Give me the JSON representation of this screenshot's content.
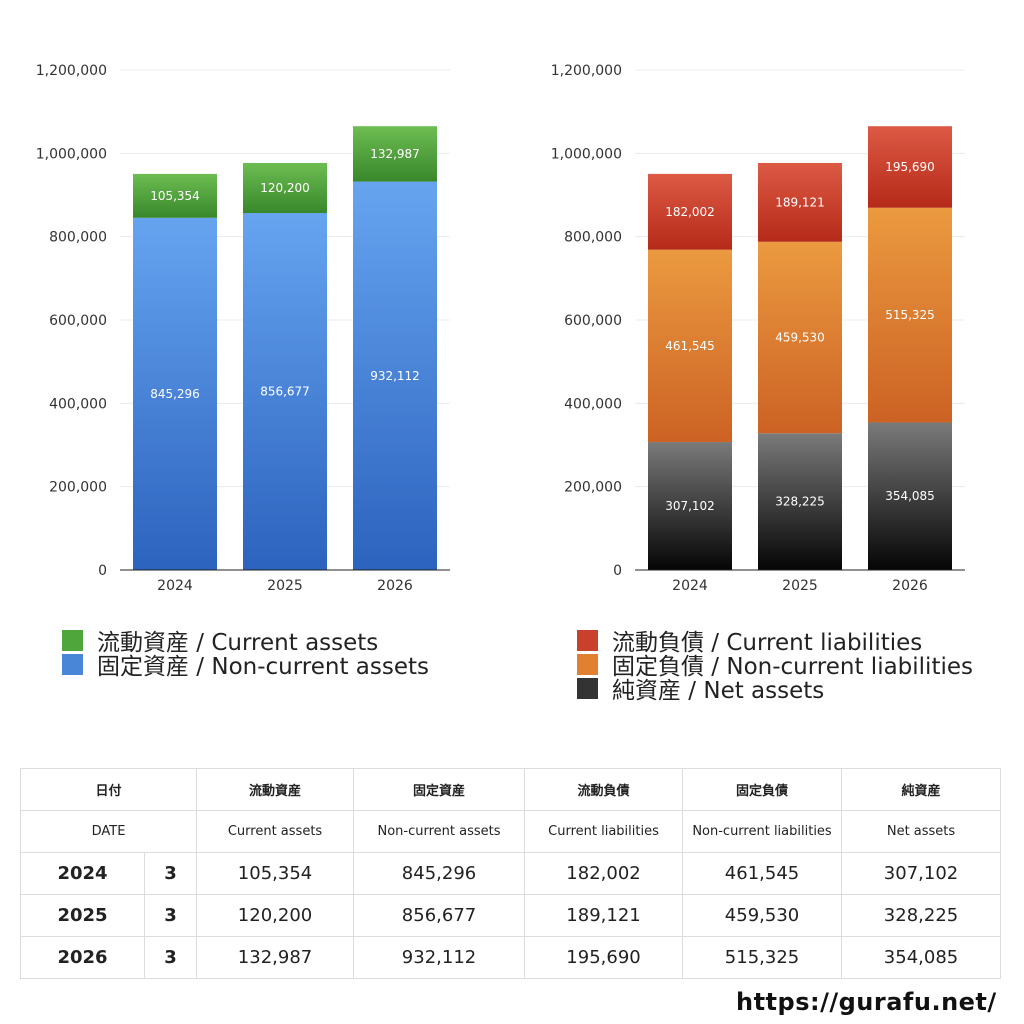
{
  "chart_data": [
    {
      "type": "bar",
      "stacked": true,
      "categories": [
        "2024",
        "2025",
        "2026"
      ],
      "ylim": [
        0,
        1200000
      ],
      "yticks": [
        "0",
        "200,000",
        "400,000",
        "600,000",
        "800,000",
        "1,000,000",
        "1,200,000"
      ],
      "grid": true,
      "series": [
        {
          "name": "固定資産 / Non-current assets",
          "values": [
            845296,
            856677,
            932112
          ],
          "labels": [
            "845,296",
            "856,677",
            "932,112"
          ],
          "color_top": "#66a4f0",
          "color_bottom": "#2c63be"
        },
        {
          "name": "流動資産 / Current assets",
          "values": [
            105354,
            120200,
            132987
          ],
          "labels": [
            "105,354",
            "120,200",
            "132,987"
          ],
          "color_top": "#6dbd52",
          "color_bottom": "#38872b"
        }
      ]
    },
    {
      "type": "bar",
      "stacked": true,
      "categories": [
        "2024",
        "2025",
        "2026"
      ],
      "ylim": [
        0,
        1200000
      ],
      "yticks": [
        "0",
        "200,000",
        "400,000",
        "600,000",
        "800,000",
        "1,000,000",
        "1,200,000"
      ],
      "grid": true,
      "series": [
        {
          "name": "純資産 / Net assets",
          "values": [
            307102,
            328225,
            354085
          ],
          "labels": [
            "307,102",
            "328,225",
            "354,085"
          ],
          "color_top": "#7a7a7a",
          "color_bottom": "#050505"
        },
        {
          "name": "固定負債 / Non-current liabilities",
          "values": [
            461545,
            459530,
            515325
          ],
          "labels": [
            "461,545",
            "459,530",
            "515,325"
          ],
          "color_top": "#eb9a40",
          "color_bottom": "#cc6224"
        },
        {
          "name": "流動負債 / Current liabilities",
          "values": [
            182002,
            189121,
            195690
          ],
          "labels": [
            "182,002",
            "189,121",
            "195,690"
          ],
          "color_top": "#dd5a45",
          "color_bottom": "#b52a18"
        }
      ]
    }
  ],
  "legend_assets": [
    {
      "label": "流動資産 / Current assets",
      "color": "#4fa63a"
    },
    {
      "label": "固定資産 / Non-current assets",
      "color": "#4a86d8"
    }
  ],
  "legend_liab": [
    {
      "label": "流動負債 / Current liabilities",
      "color": "#c9402c"
    },
    {
      "label": "固定負債 / Non-current liabilities",
      "color": "#e08030"
    },
    {
      "label": "純資産 / Net assets",
      "color": "#333333"
    }
  ],
  "table": {
    "header_jp": [
      "日付",
      "流動資産",
      "固定資産",
      "流動負債",
      "固定負債",
      "純資産"
    ],
    "header_en": [
      "DATE",
      "Current assets",
      "Non-current assets",
      "Current liabilities",
      "Non-current liabilities",
      "Net assets"
    ],
    "rows": [
      {
        "year": "2024",
        "month": "3",
        "cells": [
          "105,354",
          "845,296",
          "182,002",
          "461,545",
          "307,102"
        ]
      },
      {
        "year": "2025",
        "month": "3",
        "cells": [
          "120,200",
          "856,677",
          "189,121",
          "459,530",
          "328,225"
        ]
      },
      {
        "year": "2026",
        "month": "3",
        "cells": [
          "132,987",
          "932,112",
          "195,690",
          "515,325",
          "354,085"
        ]
      }
    ]
  },
  "site": "https://gurafu.net/"
}
